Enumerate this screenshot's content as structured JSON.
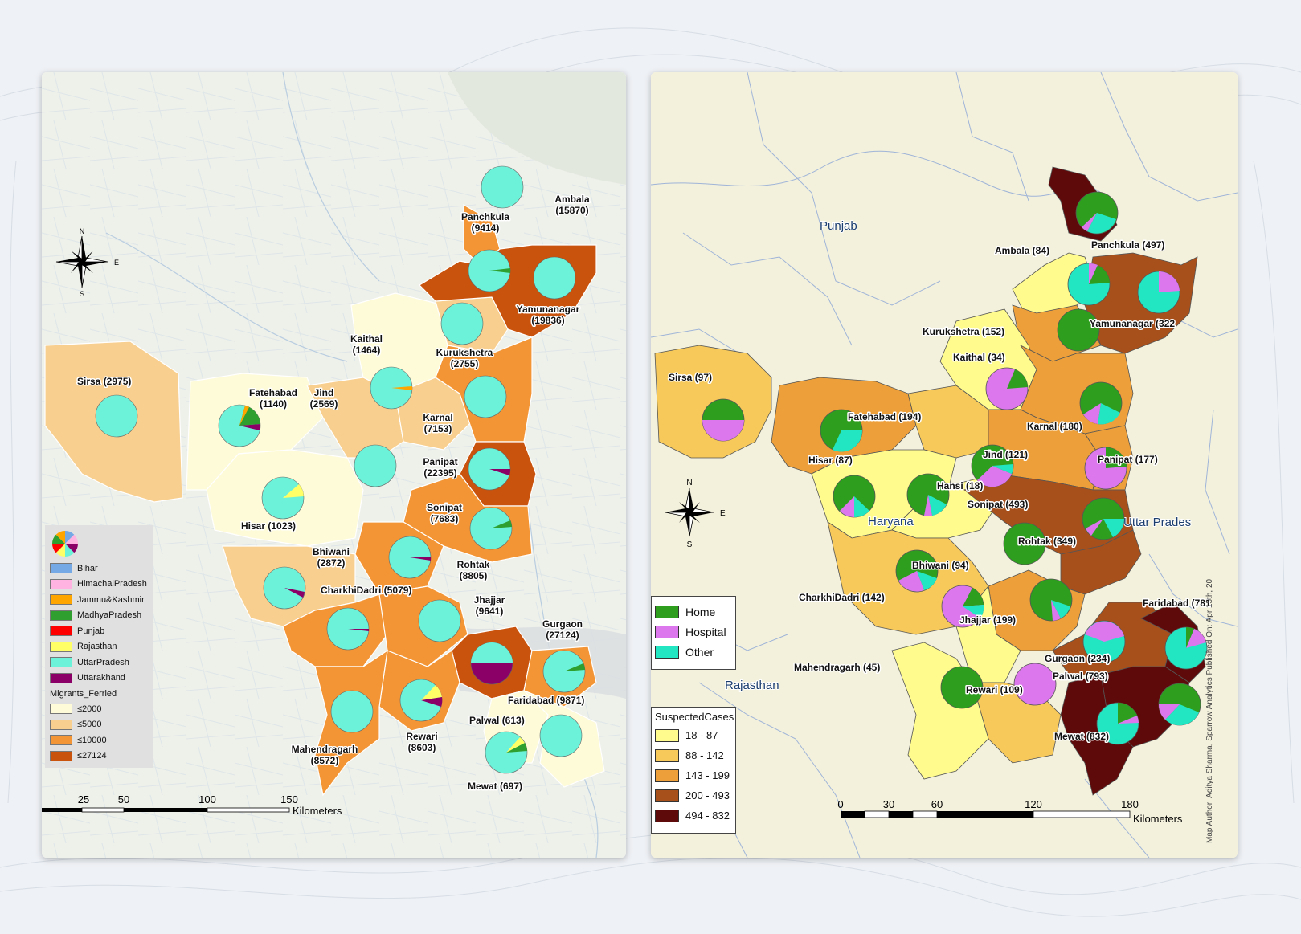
{
  "map1": {
    "legend": {
      "categories": [
        {
          "label": "Bihar",
          "color": "#74a9e6"
        },
        {
          "label": "HimachalPradesh",
          "color": "#ffb3e0"
        },
        {
          "label": "Jammu&Kashmir",
          "color": "#ffa500"
        },
        {
          "label": "MadhyaPradesh",
          "color": "#2fa02f"
        },
        {
          "label": "Punjab",
          "color": "#ff0000"
        },
        {
          "label": "Rajasthan",
          "color": "#ffff66"
        },
        {
          "label": "UttarPradesh",
          "color": "#6cf2d8"
        },
        {
          "label": "Uttarakhand",
          "color": "#8b0066"
        }
      ],
      "class_title": "Migrants_Ferried",
      "classes": [
        {
          "label": "≤2000",
          "color": "#fefbd9"
        },
        {
          "label": "≤5000",
          "color": "#f8cf8e"
        },
        {
          "label": "≤10000",
          "color": "#f39535"
        },
        {
          "label": "≤27124",
          "color": "#c9530c"
        }
      ]
    },
    "scale": {
      "ticks": [
        "25",
        "50",
        "100",
        "150"
      ],
      "unit": "Kilometers"
    },
    "districts": [
      {
        "label": "Ambala\n(15870)",
        "name": "Ambala",
        "value": 15870
      },
      {
        "label": "Panchkula\n(9414)",
        "name": "Panchkula",
        "value": 9414
      },
      {
        "label": "Yamunanagar\n(19836)",
        "name": "Yamunanagar",
        "value": 19836
      },
      {
        "label": "Kaithal\n(1464)",
        "name": "Kaithal",
        "value": 1464
      },
      {
        "label": "Kurukshetra\n(2755)",
        "name": "Kurukshetra",
        "value": 2755
      },
      {
        "label": "Sirsa (2975)",
        "name": "Sirsa",
        "value": 2975
      },
      {
        "label": "Fatehabad\n(1140)",
        "name": "Fatehabad",
        "value": 1140
      },
      {
        "label": "Jind\n(2569)",
        "name": "Jind",
        "value": 2569
      },
      {
        "label": "Karnal\n(7153)",
        "name": "Karnal",
        "value": 7153
      },
      {
        "label": "Panipat\n(22395)",
        "name": "Panipat",
        "value": 22395
      },
      {
        "label": "Hisar (1023)",
        "name": "Hisar",
        "value": 1023
      },
      {
        "label": "Sonipat\n(7683)",
        "name": "Sonipat",
        "value": 7683
      },
      {
        "label": "Bhiwani\n(2872)",
        "name": "Bhiwani",
        "value": 2872
      },
      {
        "label": "Rohtak\n(8805)",
        "name": "Rohtak",
        "value": 8805
      },
      {
        "label": "CharkhiDadri (5079)",
        "name": "CharkhiDadri",
        "value": 5079
      },
      {
        "label": "Jhajjar\n(9641)",
        "name": "Jhajjar",
        "value": 9641
      },
      {
        "label": "Gurgaon\n(27124)",
        "name": "Gurgaon",
        "value": 27124
      },
      {
        "label": "Faridabad (9871)",
        "name": "Faridabad",
        "value": 9871
      },
      {
        "label": "Palwal (613)",
        "name": "Palwal",
        "value": 613
      },
      {
        "label": "Rewari\n(8603)",
        "name": "Rewari",
        "value": 8603
      },
      {
        "label": "Mahendragarh\n(8572)",
        "name": "Mahendragarh",
        "value": 8572
      },
      {
        "label": "Mewat (697)",
        "name": "Mewat",
        "value": 697
      }
    ]
  },
  "map2": {
    "legend": {
      "categories": [
        {
          "label": "Home",
          "color": "#2e9e1e"
        },
        {
          "label": "Hospital",
          "color": "#dd77ee"
        },
        {
          "label": "Other",
          "color": "#22e6c2"
        }
      ],
      "class_title": "SuspectedCases",
      "classes": [
        {
          "label": "18 - 87",
          "color": "#fffb8c"
        },
        {
          "label": "88 - 142",
          "color": "#f6c95a"
        },
        {
          "label": "143 - 199",
          "color": "#eda03a"
        },
        {
          "label": "200 - 493",
          "color": "#a8501c"
        },
        {
          "label": "494 - 832",
          "color": "#5e0a0a"
        }
      ]
    },
    "regions": [
      "Punjab",
      "Haryana",
      "Uttar Prades",
      "Rajasthan"
    ],
    "scale": {
      "ticks": [
        "0",
        "30",
        "60",
        "120",
        "180"
      ],
      "unit": "Kilometers"
    },
    "credit": "Map Author: Aditya Sharma, Sparrow Analytics    Published On: Apr 15th, 20",
    "districts": [
      {
        "label": "Panchkula (497)",
        "name": "Panchkula",
        "value": 497
      },
      {
        "label": "Ambala (84)",
        "name": "Ambala",
        "value": 84
      },
      {
        "label": "Yamunanagar (322",
        "name": "Yamunanagar",
        "value": 322
      },
      {
        "label": "Kurukshetra (152)",
        "name": "Kurukshetra",
        "value": 152
      },
      {
        "label": "Kaithal (34)",
        "name": "Kaithal",
        "value": 34
      },
      {
        "label": "Sirsa (97)",
        "name": "Sirsa",
        "value": 97
      },
      {
        "label": "Fatehabad (194)",
        "name": "Fatehabad",
        "value": 194
      },
      {
        "label": "Karnal (180)",
        "name": "Karnal",
        "value": 180
      },
      {
        "label": "Jind (121)",
        "name": "Jind",
        "value": 121
      },
      {
        "label": "Panipat (177)",
        "name": "Panipat",
        "value": 177
      },
      {
        "label": "Hisar (87)",
        "name": "Hisar",
        "value": 87
      },
      {
        "label": "Hansi (18)",
        "name": "Hansi",
        "value": 18
      },
      {
        "label": "Sonipat (493)",
        "name": "Sonipat",
        "value": 493
      },
      {
        "label": "Rohtak (349)",
        "name": "Rohtak",
        "value": 349
      },
      {
        "label": "Bhiwani (94)",
        "name": "Bhiwani",
        "value": 94
      },
      {
        "label": "CharkhiDadri (142)",
        "name": "CharkhiDadri",
        "value": 142
      },
      {
        "label": "Jhajjar (199)",
        "name": "Jhajjar",
        "value": 199
      },
      {
        "label": "Faridabad (781",
        "name": "Faridabad",
        "value": 781
      },
      {
        "label": "Gurgaon (234)",
        "name": "Gurgaon",
        "value": 234
      },
      {
        "label": "Mahendragarh (45)",
        "name": "Mahendragarh",
        "value": 45
      },
      {
        "label": "Rewari (109)",
        "name": "Rewari",
        "value": 109
      },
      {
        "label": "Palwal (793)",
        "name": "Palwal",
        "value": 793
      },
      {
        "label": "Mewat (832)",
        "name": "Mewat",
        "value": 832
      }
    ]
  },
  "compass": {
    "n": "N",
    "s": "S",
    "e": "E"
  }
}
